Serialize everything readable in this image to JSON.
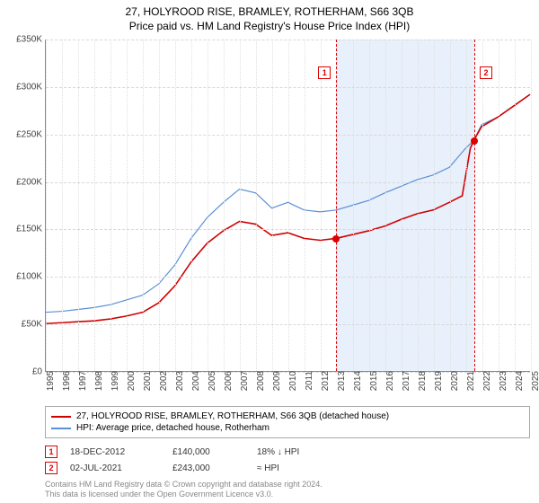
{
  "title": "27, HOLYROOD RISE, BRAMLEY, ROTHERHAM, S66 3QB",
  "subtitle": "Price paid vs. HM Land Registry's House Price Index (HPI)",
  "chart": {
    "type": "line",
    "background_color": "#ffffff",
    "grid_color": "#d8d8d8",
    "axis_color": "#888888",
    "highlight_band": {
      "x_start": 2012.96,
      "x_end": 2021.5,
      "color": "#e8f0fb"
    },
    "x": {
      "min": 1995,
      "max": 2025,
      "ticks": [
        1995,
        1996,
        1997,
        1998,
        1999,
        2000,
        2001,
        2002,
        2003,
        2004,
        2005,
        2006,
        2007,
        2008,
        2009,
        2010,
        2011,
        2012,
        2013,
        2014,
        2015,
        2016,
        2017,
        2018,
        2019,
        2020,
        2021,
        2022,
        2023,
        2024,
        2025
      ]
    },
    "y": {
      "min": 0,
      "max": 350000,
      "ticks": [
        0,
        50000,
        100000,
        150000,
        200000,
        250000,
        300000,
        350000
      ],
      "prefix": "£",
      "suffix_k": true
    },
    "series": [
      {
        "id": "price",
        "label": "27, HOLYROOD RISE, BRAMLEY, ROTHERHAM, S66 3QB (detached house)",
        "color": "#d00000",
        "width": 1.6,
        "data": [
          [
            1995,
            50000
          ],
          [
            1996,
            51000
          ],
          [
            1997,
            52000
          ],
          [
            1998,
            53000
          ],
          [
            1999,
            55000
          ],
          [
            2000,
            58000
          ],
          [
            2001,
            62000
          ],
          [
            2002,
            72000
          ],
          [
            2003,
            90000
          ],
          [
            2004,
            115000
          ],
          [
            2005,
            135000
          ],
          [
            2006,
            148000
          ],
          [
            2007,
            158000
          ],
          [
            2008,
            155000
          ],
          [
            2009,
            143000
          ],
          [
            2010,
            146000
          ],
          [
            2011,
            140000
          ],
          [
            2012,
            138000
          ],
          [
            2012.96,
            140000
          ],
          [
            2013,
            140000
          ],
          [
            2014,
            144000
          ],
          [
            2015,
            148000
          ],
          [
            2016,
            153000
          ],
          [
            2017,
            160000
          ],
          [
            2018,
            166000
          ],
          [
            2019,
            170000
          ],
          [
            2020,
            178000
          ],
          [
            2020.8,
            185000
          ],
          [
            2021.3,
            235000
          ],
          [
            2021.5,
            243000
          ],
          [
            2022,
            258000
          ],
          [
            2023,
            268000
          ],
          [
            2024,
            280000
          ],
          [
            2025,
            292000
          ]
        ]
      },
      {
        "id": "hpi",
        "label": "HPI: Average price, detached house, Rotherham",
        "color": "#5b8fd6",
        "width": 1.2,
        "data": [
          [
            1995,
            62000
          ],
          [
            1996,
            63000
          ],
          [
            1997,
            65000
          ],
          [
            1998,
            67000
          ],
          [
            1999,
            70000
          ],
          [
            2000,
            75000
          ],
          [
            2001,
            80000
          ],
          [
            2002,
            92000
          ],
          [
            2003,
            112000
          ],
          [
            2004,
            140000
          ],
          [
            2005,
            162000
          ],
          [
            2006,
            178000
          ],
          [
            2007,
            192000
          ],
          [
            2008,
            188000
          ],
          [
            2009,
            172000
          ],
          [
            2010,
            178000
          ],
          [
            2011,
            170000
          ],
          [
            2012,
            168000
          ],
          [
            2013,
            170000
          ],
          [
            2014,
            175000
          ],
          [
            2015,
            180000
          ],
          [
            2016,
            188000
          ],
          [
            2017,
            195000
          ],
          [
            2018,
            202000
          ],
          [
            2019,
            207000
          ],
          [
            2020,
            215000
          ],
          [
            2021,
            235000
          ],
          [
            2021.5,
            243000
          ],
          [
            2022,
            260000
          ],
          [
            2023,
            268000
          ],
          [
            2024,
            280000
          ],
          [
            2025,
            292000
          ]
        ]
      }
    ],
    "markers": [
      {
        "n": "1",
        "x": 2012.96,
        "y": 140000,
        "date": "18-DEC-2012",
        "price": "£140,000",
        "diff": "18% ↓ HPI"
      },
      {
        "n": "2",
        "x": 2021.5,
        "y": 243000,
        "date": "02-JUL-2021",
        "price": "£243,000",
        "diff": "≈ HPI"
      }
    ]
  },
  "legend_series": [
    {
      "color": "#d00000",
      "label": "27, HOLYROOD RISE, BRAMLEY, ROTHERHAM, S66 3QB (detached house)"
    },
    {
      "color": "#5b8fd6",
      "label": "HPI: Average price, detached house, Rotherham"
    }
  ],
  "footer": {
    "line1": "Contains HM Land Registry data © Crown copyright and database right 2024.",
    "line2": "This data is licensed under the Open Government Licence v3.0."
  }
}
